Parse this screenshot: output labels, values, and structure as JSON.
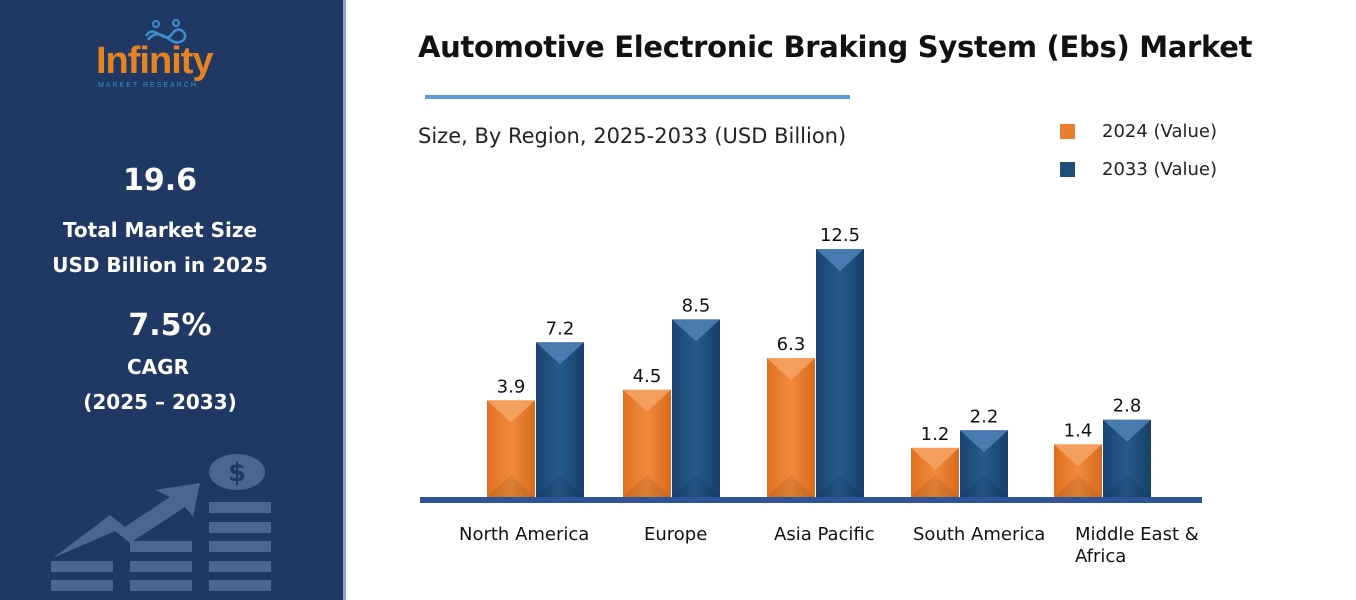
{
  "brand": {
    "logo_text": "Infinity",
    "logo_sub": "MARKET RESEARCH"
  },
  "sidebar": {
    "market_size": "19.6",
    "market_size_label_1": "Total Market Size",
    "market_size_label_2": "USD Billion in 2025",
    "cagr": "7.5%",
    "cagr_label": "CAGR",
    "cagr_period": "(2025 – 2033)"
  },
  "colors": {
    "panel": "#203864",
    "series_2024": "#ed7d31",
    "series_2033": "#1f4e79",
    "axis": "#2f5597",
    "accent": "#5b9bd5"
  },
  "chart_data": {
    "type": "bar",
    "title": "Automotive Electronic Braking System (Ebs) Market",
    "subtitle": "Size, By Region, 2025-2033 (USD Billion)",
    "categories": [
      "North America",
      "Europe",
      "Asia Pacific",
      "South America",
      "Middle East & Africa"
    ],
    "series": [
      {
        "name": "2024 (Value)",
        "values": [
          3.9,
          4.5,
          6.3,
          1.2,
          1.4
        ]
      },
      {
        "name": "2033 (Value)",
        "values": [
          7.2,
          8.5,
          12.5,
          2.2,
          2.8
        ]
      }
    ],
    "data_labels": true,
    "grid": false,
    "legend": "top-right"
  }
}
